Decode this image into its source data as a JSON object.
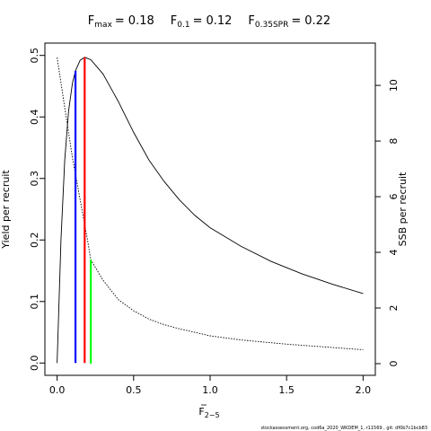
{
  "chart_data": {
    "type": "line",
    "reference_lines": [
      {
        "symbol": "F",
        "subscript": "max",
        "relation": "=",
        "value": 0.18,
        "height": 0.497,
        "color": "#ff0000",
        "axis": "y"
      },
      {
        "symbol": "F",
        "subscript": "0.1",
        "relation": "=",
        "value": 0.12,
        "height": 0.475,
        "color": "#0000ff",
        "axis": "y"
      },
      {
        "symbol": "F",
        "subscript": "0.35SPR",
        "relation": "=",
        "value": 0.22,
        "height": 3.74,
        "color": "#00ff00",
        "axis": "y2"
      }
    ],
    "xlabel": "F",
    "xlabel_subscript": "2−5",
    "ylabel": "Yield per recruit",
    "y2label": "SSB per recruit",
    "footer": "stockassessment.org, cod6a_2020_WKDEM_1, r11569 , git: df0b7c1bcb83",
    "series": [
      {
        "name": "Yield per recruit",
        "color": "#000000",
        "dash": false,
        "axis": "y",
        "x": [
          0,
          0.025,
          0.05,
          0.075,
          0.1,
          0.12,
          0.15,
          0.18,
          0.22,
          0.3,
          0.4,
          0.5,
          0.6,
          0.7,
          0.8,
          0.9,
          1.0,
          1.2,
          1.4,
          1.6,
          1.8,
          2.0
        ],
        "values": [
          0,
          0.2,
          0.33,
          0.41,
          0.455,
          0.475,
          0.492,
          0.497,
          0.493,
          0.47,
          0.425,
          0.375,
          0.33,
          0.295,
          0.265,
          0.24,
          0.22,
          0.19,
          0.165,
          0.145,
          0.128,
          0.113
        ]
      },
      {
        "name": "SSB per recruit",
        "color": "#000000",
        "dash": true,
        "axis": "y2",
        "x": [
          0,
          0.05,
          0.1,
          0.15,
          0.2,
          0.22,
          0.3,
          0.4,
          0.5,
          0.6,
          0.7,
          0.8,
          1.0,
          1.2,
          1.5,
          2.0
        ],
        "values": [
          11,
          9.2,
          7.4,
          5.9,
          4.4,
          3.74,
          3.0,
          2.3,
          1.9,
          1.6,
          1.4,
          1.25,
          1.0,
          0.85,
          0.7,
          0.5
        ]
      }
    ],
    "xlim": [
      -0.08,
      2.08
    ],
    "ylim": [
      -0.02,
      0.52
    ],
    "y2lim": [
      -0.42,
      11.52
    ],
    "xticks": [
      {
        "value": 0,
        "label": "0.0"
      },
      0.5,
      {
        "value": 1,
        "label": "1.0"
      },
      1.5,
      {
        "value": 2,
        "label": "2.0"
      }
    ],
    "yticks": [
      {
        "value": 0,
        "label": "0.0"
      },
      0.1,
      0.2,
      0.3,
      0.4,
      0.5
    ],
    "y2ticks": [
      0,
      2,
      4,
      6,
      8,
      10
    ]
  }
}
